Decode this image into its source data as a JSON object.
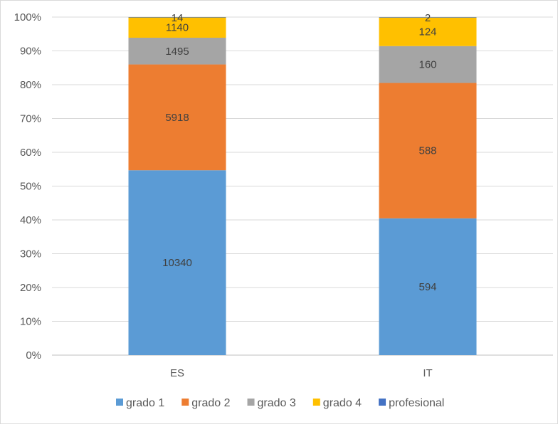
{
  "chart_data": {
    "type": "bar",
    "stacked": "percent",
    "title": "",
    "xlabel": "",
    "ylabel": "",
    "categories": [
      "ES",
      "IT"
    ],
    "series": [
      {
        "name": "grado 1",
        "color": "#5b9bd5",
        "values": [
          10340,
          594
        ]
      },
      {
        "name": "grado 2",
        "color": "#ed7d31",
        "values": [
          5918,
          588
        ]
      },
      {
        "name": "grado 3",
        "color": "#a5a5a5",
        "values": [
          1495,
          160
        ]
      },
      {
        "name": "grado 4",
        "color": "#ffc000",
        "values": [
          1140,
          124
        ]
      },
      {
        "name": "profesional",
        "color": "#4472c4",
        "values": [
          14,
          2
        ]
      }
    ],
    "ylim": [
      0,
      100
    ],
    "yticks": [
      "0%",
      "10%",
      "20%",
      "30%",
      "40%",
      "50%",
      "60%",
      "70%",
      "80%",
      "90%",
      "100%"
    ],
    "grid": true,
    "legend_position": "bottom",
    "data_labels": true
  }
}
